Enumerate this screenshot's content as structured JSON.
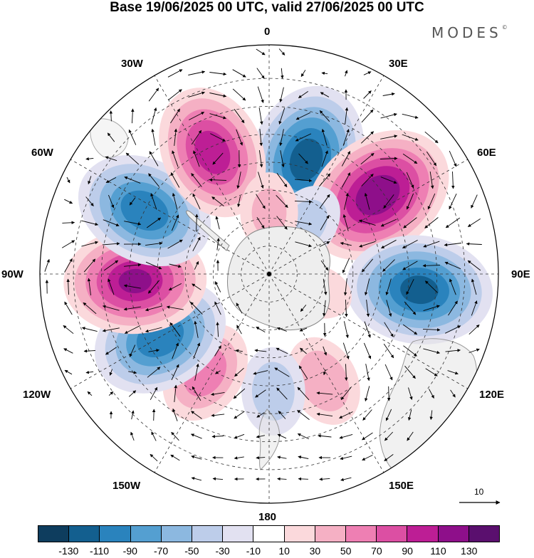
{
  "title": "Base 19/06/2025 00 UTC, valid 27/06/2025 00 UTC",
  "brand": "MODES",
  "brand_mark": "©",
  "longitude_labels": {
    "lon_0": "0",
    "lon_30e": "30E",
    "lon_60e": "60E",
    "lon_90e": "90E",
    "lon_120e": "120E",
    "lon_150e": "150E",
    "lon_180": "180",
    "lon_150w": "150W",
    "lon_120w": "120W",
    "lon_90w": "90W",
    "lon_60w": "60W",
    "lon_30w": "30W"
  },
  "reference_vector": "10",
  "colorbar": {
    "colors": [
      "#0e3d5e",
      "#135f8f",
      "#2a83bd",
      "#549fd1",
      "#8cb8e0",
      "#bdcdea",
      "#e2e1f1",
      "#ffffff",
      "#fbd9dc",
      "#f5b0c4",
      "#ee7fb3",
      "#dc4fa3",
      "#bd1e95",
      "#8e0f8a",
      "#5a0f6e"
    ],
    "ticks": [
      "-130",
      "-110",
      "-90",
      "-70",
      "-50",
      "-30",
      "-10",
      "10",
      "30",
      "50",
      "70",
      "90",
      "110",
      "130"
    ]
  },
  "anomaly_centers": [
    {
      "lon": 18,
      "lat": -47,
      "value": -120
    },
    {
      "lon": 54,
      "lat": -42,
      "value": 125
    },
    {
      "lon": 96,
      "lat": -36,
      "value": -115
    },
    {
      "lon": 153,
      "lat": -47,
      "value": 45
    },
    {
      "lon": 178,
      "lat": -48,
      "value": -40
    },
    {
      "lon": -147,
      "lat": -48,
      "value": 60
    },
    {
      "lon": -120,
      "lat": -45,
      "value": -105
    },
    {
      "lon": -93,
      "lat": -42,
      "value": 110
    },
    {
      "lon": -63,
      "lat": -40,
      "value": -105
    },
    {
      "lon": -25,
      "lat": -42,
      "value": 100
    },
    {
      "lon": 110,
      "lat": -72,
      "value": 20
    },
    {
      "lon": 36,
      "lat": -68,
      "value": -35
    },
    {
      "lon": 0,
      "lat": -68,
      "value": 30
    }
  ]
}
